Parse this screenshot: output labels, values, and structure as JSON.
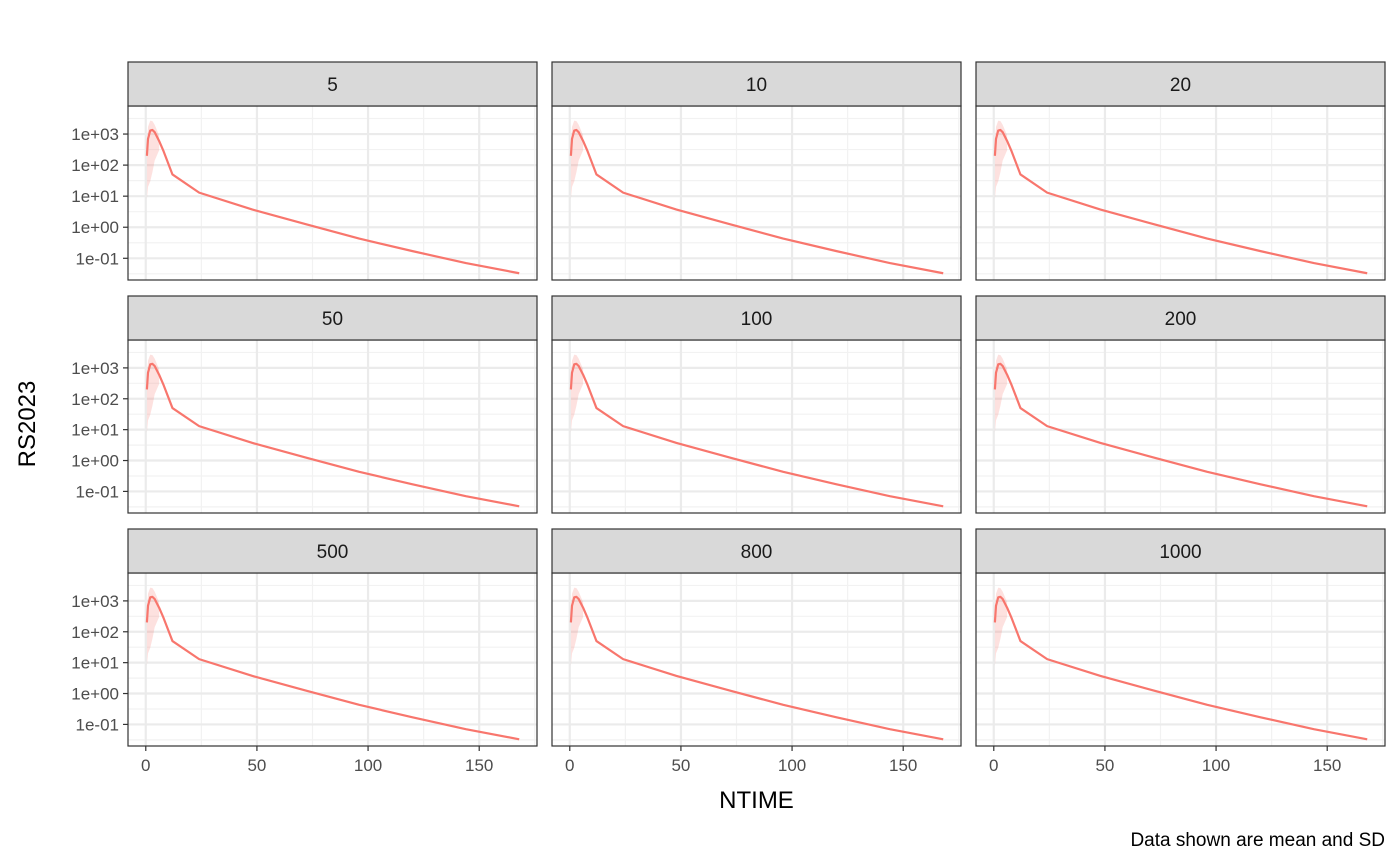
{
  "chart_data": {
    "type": "line",
    "facet_variable_values": [
      "5",
      "10",
      "20",
      "50",
      "100",
      "200",
      "500",
      "800",
      "1000"
    ],
    "xlabel": "NTIME",
    "ylabel": "RS2023",
    "caption": "Data shown are mean and SD",
    "x_ticks": [
      0,
      50,
      100,
      150
    ],
    "x_tick_labels": [
      "0",
      "50",
      "100",
      "150"
    ],
    "xlim": [
      -8,
      176
    ],
    "y_scale": "log10",
    "y_ticks": [
      0.1,
      1,
      10,
      100,
      1000
    ],
    "y_tick_labels": [
      "1e-01",
      "1e+00",
      "1e+01",
      "1e+02",
      "1e+03"
    ],
    "ylim": [
      0.02,
      8000
    ],
    "grid": true,
    "series_color": "#F8766D",
    "band_color": "#F8766D",
    "mean": {
      "x": [
        0.5,
        1,
        2,
        3,
        4,
        6,
        8,
        12,
        24,
        48,
        72,
        96,
        120,
        144,
        168
      ],
      "y": [
        200,
        700,
        1300,
        1350,
        1150,
        600,
        280,
        50,
        13,
        3.7,
        1.25,
        0.43,
        0.17,
        0.07,
        0.033
      ]
    },
    "sd": {
      "x": [
        0.5,
        1,
        2,
        3,
        4,
        6
      ],
      "lower": [
        8,
        20,
        30,
        60,
        140,
        300
      ],
      "upper": [
        500,
        1700,
        2700,
        2600,
        2000,
        900
      ]
    }
  }
}
